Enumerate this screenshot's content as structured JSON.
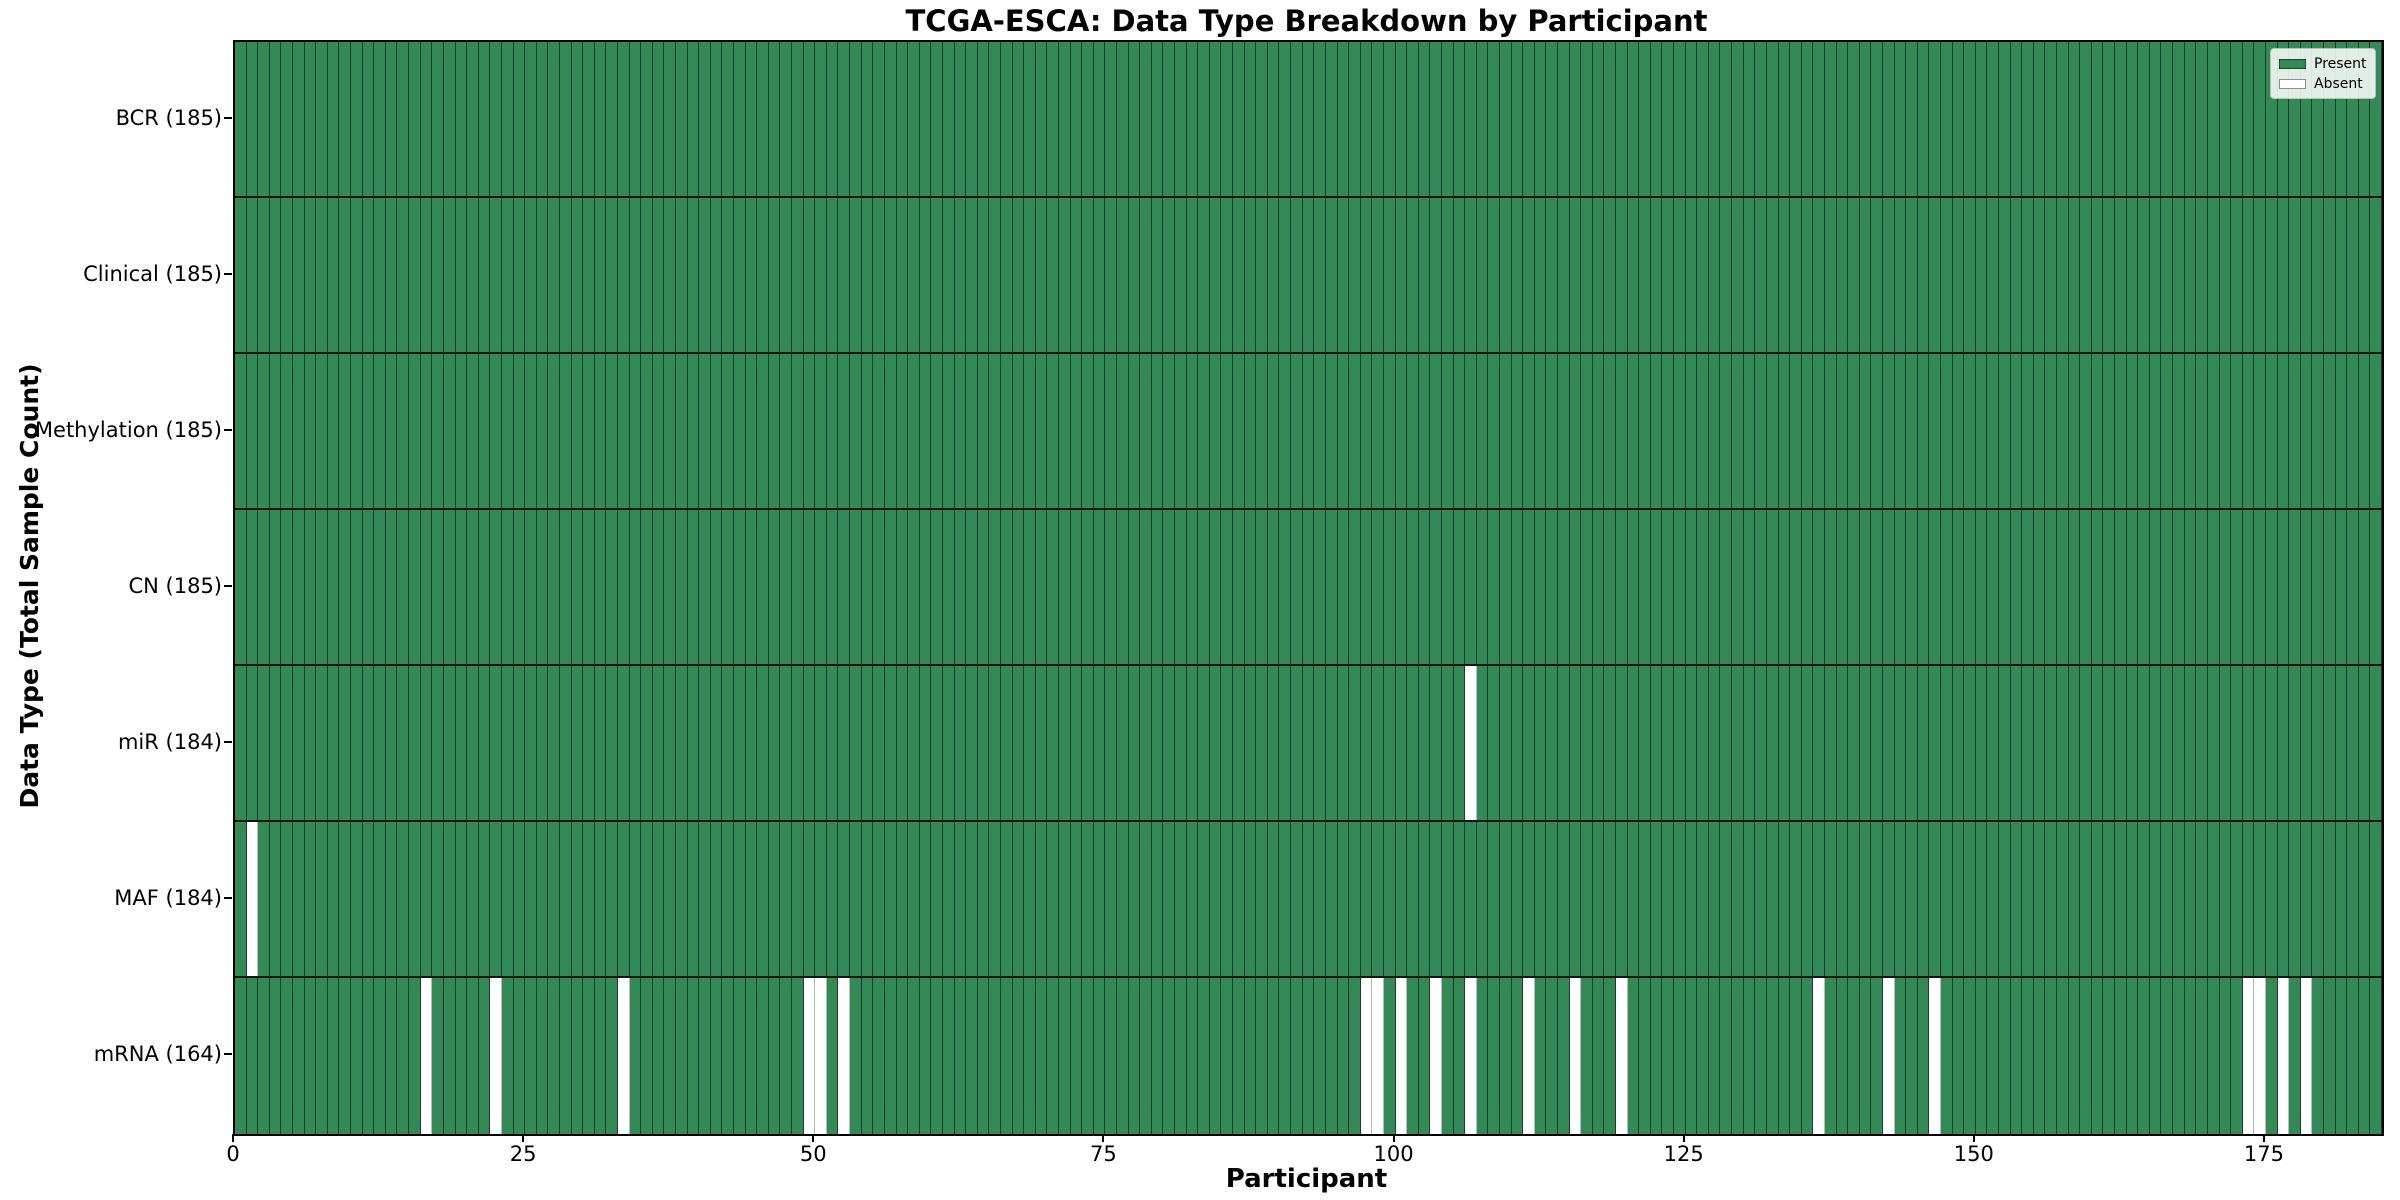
{
  "title": "TCGA-ESCA: Data Type Breakdown by Participant",
  "xlabel": "Participant",
  "ylabel": "Data Type (Total Sample Count)",
  "legend": {
    "entries": [
      {
        "label": "Present",
        "color": "#338a57"
      },
      {
        "label": "Absent",
        "color": "#ffffff"
      }
    ]
  },
  "colors": {
    "present": "#338a57",
    "absent": "#ffffff",
    "cell_edge": "rgba(0,0,0,0.55)",
    "row_separator": "#101510",
    "spine": "#000000"
  },
  "chart_data": {
    "type": "heatmap",
    "n_participants": 185,
    "x_range": [
      0,
      185
    ],
    "x_ticks": [
      0,
      25,
      50,
      75,
      100,
      125,
      150,
      175
    ],
    "legend_position": "upper right",
    "grid": false,
    "rows": [
      {
        "key": "bcr",
        "label": "BCR (185)",
        "total_count": 185,
        "absent_participants": []
      },
      {
        "key": "clinical",
        "label": "Clinical (185)",
        "total_count": 185,
        "absent_participants": []
      },
      {
        "key": "methylation",
        "label": "Methylation (185)",
        "total_count": 185,
        "absent_participants": []
      },
      {
        "key": "cn",
        "label": "CN (185)",
        "total_count": 185,
        "absent_participants": []
      },
      {
        "key": "mir",
        "label": "miR (184)",
        "total_count": 184,
        "absent_participants": [
          106
        ]
      },
      {
        "key": "maf",
        "label": "MAF (184)",
        "total_count": 184,
        "absent_participants": [
          1
        ]
      },
      {
        "key": "mrna",
        "label": "mRNA (164)",
        "total_count": 164,
        "absent_participants": [
          16,
          22,
          33,
          49,
          50,
          52,
          97,
          98,
          100,
          103,
          106,
          111,
          115,
          119,
          136,
          142,
          146,
          173,
          174,
          176,
          178
        ]
      }
    ]
  }
}
